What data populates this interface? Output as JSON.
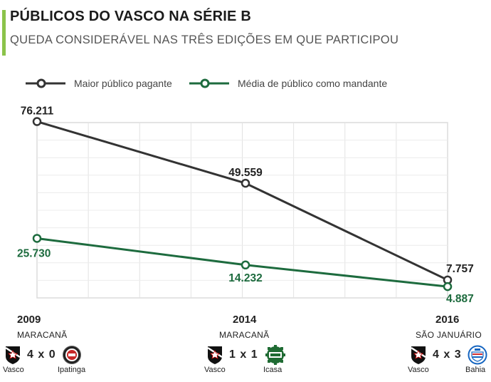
{
  "header": {
    "title": "PÚBLICOS DO VASCO NA SÉRIE B",
    "subtitle": "QUEDA CONSIDERÁVEL NAS TRÊS EDIÇÕES EM QUE PARTICIPOU"
  },
  "colors": {
    "accent": "#8bc34a",
    "series_max": "#333333",
    "series_avg": "#1d6b3e",
    "grid": "#e2e2e2"
  },
  "chart_data": {
    "type": "line",
    "x": [
      "2009",
      "2014",
      "2016"
    ],
    "ylim": [
      0,
      80000
    ],
    "grid": true,
    "legend_position": "top",
    "series": [
      {
        "name": "Maior público pagante",
        "values": [
          76211,
          49559,
          7757
        ],
        "labels": [
          "76.211",
          "49.559",
          "7.757"
        ],
        "color": "#333333"
      },
      {
        "name": "Média de público como mandante",
        "values": [
          25730,
          14232,
          4887
        ],
        "labels": [
          "25.730",
          "14.232",
          "4.887"
        ],
        "color": "#1d6b3e"
      }
    ]
  },
  "matches": [
    {
      "year": "2009",
      "venue": "MARACANÃ",
      "home": "Vasco",
      "score": "4 x 0",
      "away": "Ipatinga",
      "home_icon": "vasco-crest-icon",
      "away_icon": "ipatinga-crest-icon"
    },
    {
      "year": "2014",
      "venue": "MARACANÃ",
      "home": "Vasco",
      "score": "1 x 1",
      "away": "Icasa",
      "home_icon": "vasco-crest-icon",
      "away_icon": "icasa-crest-icon"
    },
    {
      "year": "2016",
      "venue": "SÃO JANUÁRIO",
      "home": "Vasco",
      "score": "4 x 3",
      "away": "Bahia",
      "home_icon": "vasco-crest-icon",
      "away_icon": "bahia-crest-icon"
    }
  ]
}
